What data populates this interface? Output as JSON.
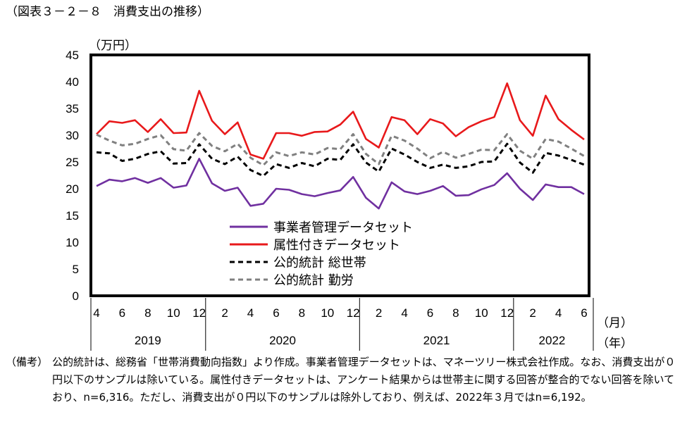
{
  "figure_title": "（図表３－２－８　消費支出の推移）",
  "note": {
    "label": "（備考）",
    "text": "公的統計は、総務省「世帯消費動向指数」より作成。事業者管理データセットは、マネーツリー株式会社作成。なお、消費支出が０円以下のサンプルは除いている。属性付きデータセットは、アンケート結果からは世帯主に関する回答が整合的でない回答を除いており、n=6,316。ただし、消費支出が０円以下のサンプルは除外しており、例えば、2022年３月ではn=6,192。"
  },
  "chart_data": {
    "type": "line",
    "ylabel": "（万円）",
    "xlabel_month": "（月）",
    "xlabel_year": "（年）",
    "ylim": [
      0,
      45
    ],
    "yticks": [
      0,
      5,
      10,
      15,
      20,
      25,
      30,
      35,
      40,
      45
    ],
    "month_ticks": [
      "4",
      "6",
      "8",
      "10",
      "12",
      "2",
      "4",
      "6",
      "8",
      "10",
      "12",
      "2",
      "4",
      "6",
      "8",
      "10",
      "12",
      "2",
      "4",
      "6"
    ],
    "years": [
      "2019",
      "2020",
      "2021",
      "2022"
    ],
    "x": [
      "2019-04",
      "2019-05",
      "2019-06",
      "2019-07",
      "2019-08",
      "2019-09",
      "2019-10",
      "2019-11",
      "2019-12",
      "2020-01",
      "2020-02",
      "2020-03",
      "2020-04",
      "2020-05",
      "2020-06",
      "2020-07",
      "2020-08",
      "2020-09",
      "2020-10",
      "2020-11",
      "2020-12",
      "2021-01",
      "2021-02",
      "2021-03",
      "2021-04",
      "2021-05",
      "2021-06",
      "2021-07",
      "2021-08",
      "2021-09",
      "2021-10",
      "2021-11",
      "2021-12",
      "2022-01",
      "2022-02",
      "2022-03",
      "2022-04",
      "2022-05",
      "2022-06"
    ],
    "series": [
      {
        "name": "事業者管理データセット",
        "color": "#7030a0",
        "dash": "solid",
        "values": [
          20.5,
          21.7,
          21.4,
          22.0,
          21.1,
          22.0,
          20.2,
          20.6,
          25.6,
          21.0,
          19.6,
          20.2,
          16.8,
          17.2,
          20.0,
          19.8,
          19.0,
          18.6,
          19.2,
          19.7,
          22.2,
          18.3,
          16.3,
          21.2,
          19.5,
          19.0,
          19.6,
          20.5,
          18.7,
          18.8,
          19.9,
          20.7,
          22.9,
          20.0,
          17.9,
          20.8,
          20.3,
          20.3,
          19.0
        ]
      },
      {
        "name": "属性付きデータセット",
        "color": "#e8191b",
        "dash": "solid",
        "values": [
          30.2,
          32.6,
          32.3,
          32.8,
          30.6,
          33.0,
          30.4,
          30.5,
          38.3,
          32.7,
          30.2,
          32.4,
          26.4,
          25.6,
          30.4,
          30.4,
          29.9,
          30.6,
          30.7,
          32.0,
          34.4,
          29.3,
          27.7,
          33.4,
          32.8,
          30.2,
          33.0,
          32.2,
          29.8,
          31.5,
          32.6,
          33.4,
          39.7,
          32.8,
          29.9,
          37.4,
          33.0,
          31.0,
          29.2
        ]
      },
      {
        "name": "公的統計 総世帯",
        "color": "#000000",
        "dash": "dashed",
        "values": [
          26.8,
          26.6,
          25.2,
          25.6,
          26.5,
          27.0,
          24.7,
          24.8,
          28.3,
          25.6,
          24.6,
          26.0,
          23.5,
          22.4,
          24.6,
          23.9,
          24.8,
          24.2,
          25.6,
          25.4,
          28.3,
          24.9,
          23.2,
          27.5,
          26.4,
          25.0,
          23.9,
          24.5,
          23.9,
          24.2,
          25.0,
          25.1,
          28.4,
          24.9,
          23.0,
          26.7,
          26.2,
          25.4,
          24.5
        ]
      },
      {
        "name": "公的統計 勤労",
        "color": "#808080",
        "dash": "dashed",
        "values": [
          30.1,
          29.0,
          28.1,
          28.4,
          29.3,
          30.0,
          27.4,
          27.1,
          30.4,
          28.0,
          27.0,
          28.4,
          25.8,
          24.4,
          26.8,
          26.1,
          26.8,
          26.4,
          27.6,
          27.4,
          30.2,
          26.5,
          24.6,
          29.9,
          29.0,
          27.5,
          25.7,
          26.9,
          25.8,
          26.5,
          27.3,
          27.2,
          30.2,
          27.1,
          25.6,
          29.3,
          28.8,
          27.5,
          26.1
        ]
      }
    ]
  }
}
